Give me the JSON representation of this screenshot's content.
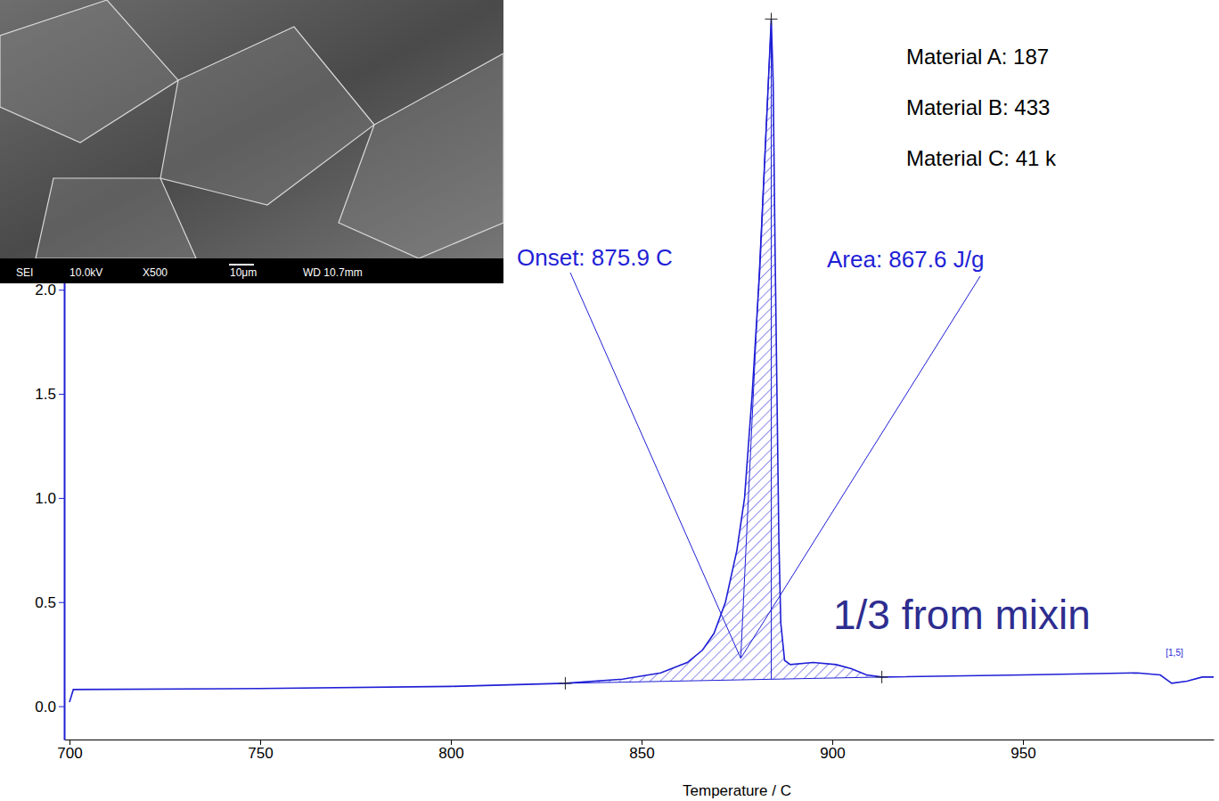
{
  "chart_data": {
    "type": "line",
    "x_label": "Temperature / C",
    "color": "#1f1fd6",
    "x": [
      700,
      701,
      750,
      800,
      830,
      845,
      855,
      862,
      866,
      869,
      872,
      875,
      877,
      879,
      881,
      882.5,
      883.5,
      884,
      884.5,
      885,
      885.5,
      886,
      886.5,
      887.5,
      889,
      895,
      901,
      905,
      909,
      913,
      950,
      980,
      986,
      989,
      993,
      997,
      1000
    ],
    "values": [
      0.02,
      0.08,
      0.085,
      0.095,
      0.11,
      0.13,
      0.16,
      0.21,
      0.27,
      0.35,
      0.5,
      0.75,
      1.0,
      1.5,
      2.1,
      2.7,
      3.1,
      3.3,
      3.0,
      2.2,
      1.5,
      0.8,
      0.4,
      0.22,
      0.2,
      0.21,
      0.2,
      0.18,
      0.15,
      0.14,
      0.15,
      0.16,
      0.15,
      0.11,
      0.12,
      0.14,
      0.14
    ],
    "xlim": [
      698.6,
      1000
    ],
    "ylim": [
      -0.16,
      3.37
    ],
    "xticks": [
      700,
      750,
      800,
      850,
      900,
      950
    ],
    "yticks": [
      {
        "value": 0,
        "label": "0.0"
      },
      0.5,
      {
        "value": 1,
        "label": "1.0"
      },
      1.5,
      {
        "value": 2,
        "label": "2.0"
      }
    ],
    "grid": false,
    "annotations": [
      {
        "text": "Onset: 875.9 C",
        "target": [
          876,
          0.23
        ]
      },
      {
        "text": "Area: 867.6 J/g",
        "target": [
          876,
          0.23
        ]
      }
    ],
    "integration": {
      "x": [
        830,
        913
      ],
      "baseline": [
        0.11,
        0.14
      ],
      "peak": [
        884,
        3.3
      ]
    },
    "curve_label": {
      "text": "[1,5]",
      "x": 992,
      "y": 0.2
    },
    "side_notes": [
      "Material A: 187",
      "Material B: 433",
      "Material C: 41 k"
    ],
    "overlay_text": "1/3 from mixin",
    "inset_caption": [
      "SEI",
      "10.0kV",
      "X500",
      "10μm",
      "WD 10.7mm"
    ]
  }
}
